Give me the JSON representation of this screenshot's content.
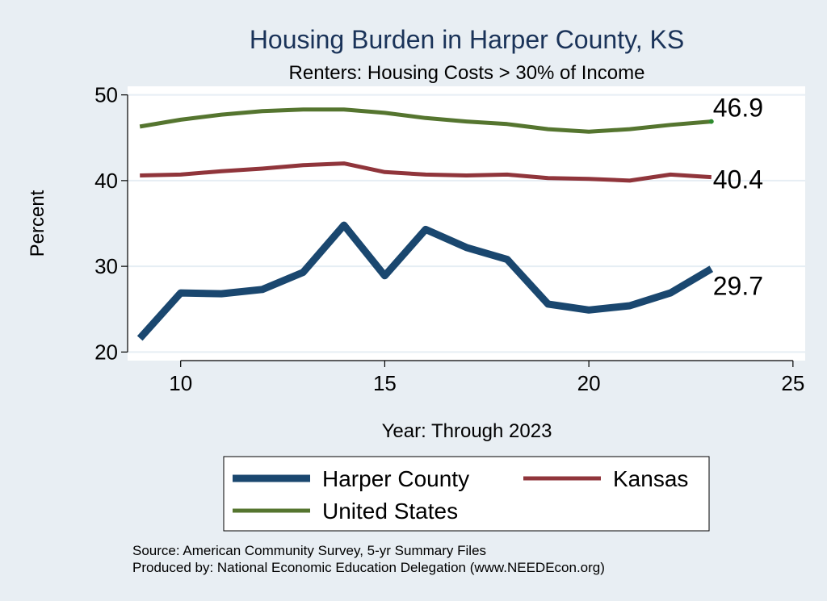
{
  "chart_data": {
    "type": "line",
    "title": "Housing Burden in Harper County, KS",
    "subtitle": "Renters: Housing Costs > 30% of Income",
    "xlabel": "Year: Through 2023",
    "ylabel": "Percent",
    "xlim": [
      8.7,
      25.3
    ],
    "ylim": [
      19,
      51
    ],
    "xticks": [
      10,
      15,
      20,
      25
    ],
    "yticks": [
      20,
      30,
      40,
      50
    ],
    "grid": true,
    "legend_position": "bottom",
    "series": [
      {
        "name": "Harper County",
        "color": "#1a476f",
        "width": 9,
        "x": [
          9,
          10,
          11,
          12,
          13,
          14,
          15,
          16,
          17,
          18,
          19,
          20,
          21,
          22,
          23
        ],
        "values": [
          21.6,
          26.9,
          26.8,
          27.3,
          29.3,
          34.8,
          28.9,
          34.3,
          32.2,
          30.8,
          25.6,
          24.9,
          25.4,
          26.9,
          29.7
        ],
        "end_label": "29.7"
      },
      {
        "name": "Kansas",
        "color": "#90353b",
        "width": 5,
        "x": [
          9,
          10,
          11,
          12,
          13,
          14,
          15,
          16,
          17,
          18,
          19,
          20,
          21,
          22,
          23
        ],
        "values": [
          40.6,
          40.7,
          41.1,
          41.4,
          41.8,
          42.0,
          41.0,
          40.7,
          40.6,
          40.7,
          40.3,
          40.2,
          40.0,
          40.7,
          40.4
        ],
        "end_label": "40.4"
      },
      {
        "name": "United States",
        "color": "#55752f",
        "width": 5,
        "x": [
          9,
          10,
          11,
          12,
          13,
          14,
          15,
          16,
          17,
          18,
          19,
          20,
          21,
          22,
          23
        ],
        "values": [
          46.3,
          47.1,
          47.7,
          48.1,
          48.3,
          48.3,
          47.9,
          47.3,
          46.9,
          46.6,
          46.0,
          45.7,
          46.0,
          46.5,
          46.9
        ],
        "end_label": "46.9"
      }
    ],
    "source_lines": [
      "Source: American Community Survey, 5-yr Summary Files",
      "Produced by: National Economic Education Delegation (www.NEEDEcon.org)"
    ]
  },
  "colors": {
    "background": "#e8eef3",
    "plot_area": "#ffffff",
    "grid": "#e6eef4",
    "title": "#1a3359"
  }
}
